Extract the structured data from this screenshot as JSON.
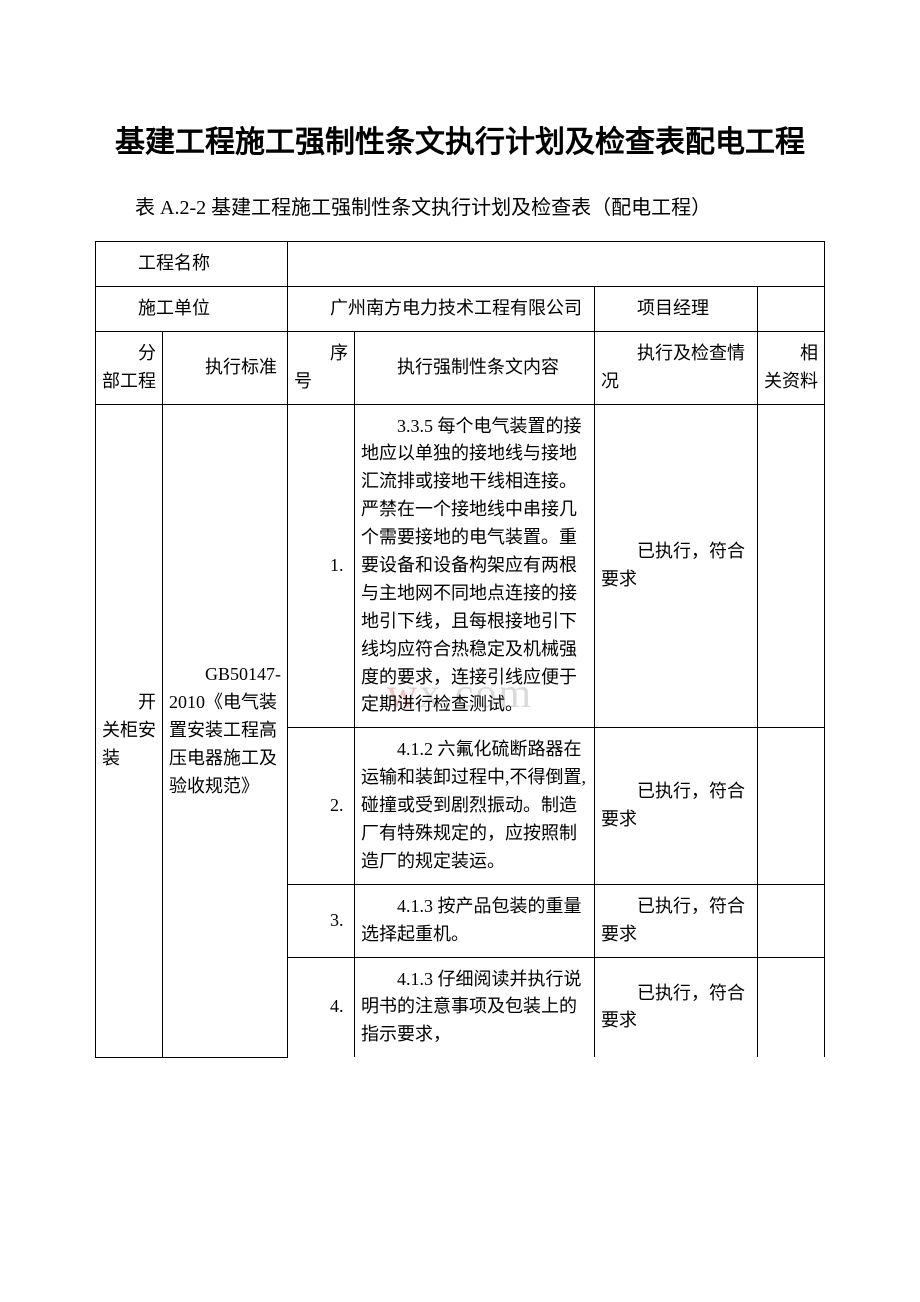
{
  "title": "基建工程施工强制性条文执行计划及检查表配电工程",
  "subtitle": "表 A.2-2 基建工程施工强制性条文执行计划及检查表（配电工程）",
  "watermark_prefix": "w",
  "watermark_suffix": "x.com",
  "labels": {
    "project_name": "工程名称",
    "construction_unit": "施工单位",
    "construction_unit_value": "广州南方电力技术工程有限公司",
    "project_manager": "项目经理",
    "division": "分部工程",
    "standard": "执行标准",
    "sequence": "序号",
    "content": "执行强制性条文内容",
    "status": "执行及检查情况",
    "material": "相关资料"
  },
  "division_value": "开关柜安装",
  "standard_value": "GB50147-2010《电气装置安装工程高压电器施工及验收规范》",
  "rows": [
    {
      "seq": "1.",
      "content": "3.3.5 每个电气装置的接地应以单独的接地线与接地汇流排或接地干线相连接。严禁在一个接地线中串接几个需要接地的电气装置。重要设备和设备构架应有两根与主地网不同地点连接的接地引下线，且每根接地引下线均应符合热稳定及机械强度的要求，连接引线应便于定期进行检查测试。",
      "status": "已执行，符合要求"
    },
    {
      "seq": "2.",
      "content": "4.1.2 六氟化硫断路器在运输和装卸过程中,不得倒置,碰撞或受到剧烈振动。制造厂有特殊规定的，应按照制造厂的规定装运。",
      "status": "已执行，符合要求"
    },
    {
      "seq": "3.",
      "content": "4.1.3 按产品包装的重量选择起重机。",
      "status": "已执行，符合要求"
    },
    {
      "seq": "4.",
      "content": "4.1.3 仔细阅读并执行说明书的注意事项及包装上的指示要求，",
      "status": "已执行，符合要求"
    }
  ],
  "colors": {
    "background": "#ffffff",
    "border": "#000000",
    "text": "#000000",
    "wm_red": "rgba(220, 80, 60, 0.35)",
    "wm_gray": "rgba(150, 150, 150, 0.35)"
  },
  "typography": {
    "title_fontsize": 30,
    "subtitle_fontsize": 20,
    "table_fontsize": 18,
    "font_family": "SimSun"
  }
}
